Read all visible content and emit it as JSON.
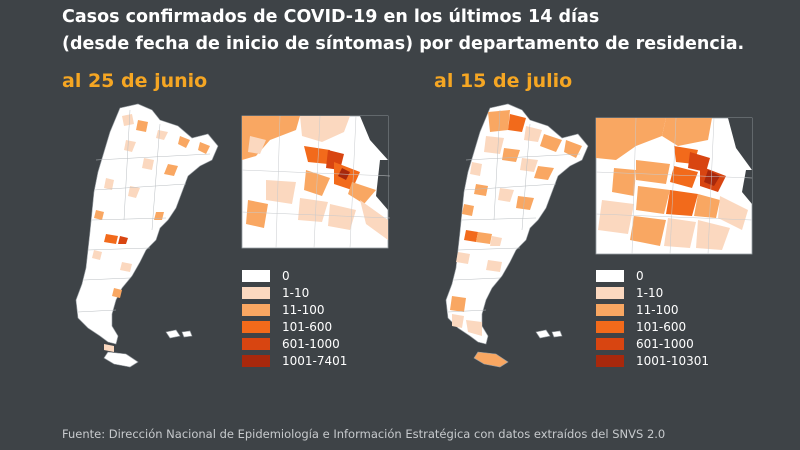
{
  "title": {
    "line1": "Casos confirmados de COVID-19 en los últimos 14 días",
    "line2": "(desde fecha de inicio de síntomas) por departamento de residencia."
  },
  "maps": [
    {
      "date_label": "al 25 de junio",
      "legend": [
        {
          "label": "0",
          "color": "#ffffff"
        },
        {
          "label": "1-10",
          "color": "#fbd8bf"
        },
        {
          "label": "11-100",
          "color": "#f9a762"
        },
        {
          "label": "101-600",
          "color": "#f26a1b"
        },
        {
          "label": "601-1000",
          "color": "#d84511"
        },
        {
          "label": "1001-7401",
          "color": "#a8280c"
        }
      ]
    },
    {
      "date_label": "al 15 de julio",
      "legend": [
        {
          "label": "0",
          "color": "#ffffff"
        },
        {
          "label": "1-10",
          "color": "#fbd8bf"
        },
        {
          "label": "11-100",
          "color": "#f9a762"
        },
        {
          "label": "101-600",
          "color": "#f26a1b"
        },
        {
          "label": "601-1000",
          "color": "#d84511"
        },
        {
          "label": "1001-10301",
          "color": "#a8280c"
        }
      ]
    }
  ],
  "footer": "Fuente: Dirección Nacional de Epidemiología e Información Estratégica con datos extraídos del SNVS 2.0"
}
